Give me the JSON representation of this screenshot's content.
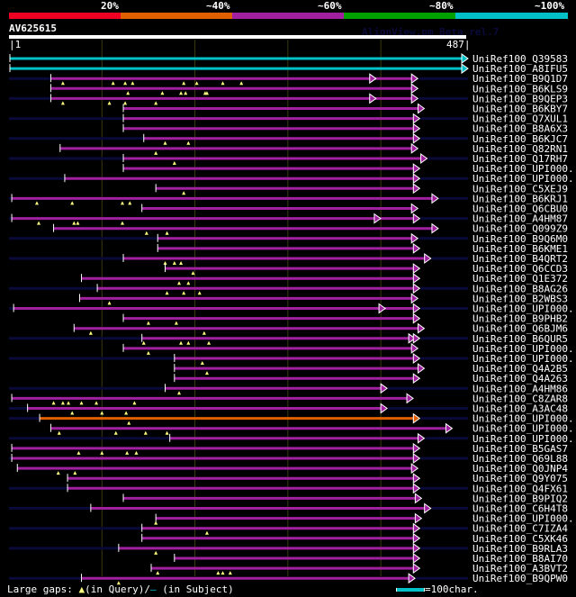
{
  "header": {
    "percent_labels": [
      "20%",
      "~40%",
      "~60%",
      "~80%",
      "~100%"
    ],
    "identity_bands": [
      {
        "label": "20%",
        "color": "#ee0022"
      },
      {
        "label": "~40%",
        "color": "#e06000"
      },
      {
        "label": "~60%",
        "color": "#a020a0"
      },
      {
        "label": "~80%",
        "color": "#00a000"
      },
      {
        "label": "~100%",
        "color": "#00c0c8"
      }
    ],
    "query_name": "AV625615",
    "credit": "AlignView.pm Beta rel.7",
    "query_start": "1",
    "query_end": "487"
  },
  "axis": {
    "min": 1,
    "max": 487,
    "gridlines": [
      100,
      200,
      300,
      400
    ]
  },
  "colors": {
    "magenta": "#a020a0",
    "cyan": "#00c0c8",
    "orange": "#e06000",
    "dark": "#0a0a3a",
    "gap": "#ffff80"
  },
  "hits": [
    {
      "name": "UniRef100_Q39583",
      "color": "cyan",
      "start": 1,
      "end": 487,
      "tail": 0
    },
    {
      "name": "UniRef100_A8IFU5",
      "color": "cyan",
      "start": 1,
      "end": 487,
      "tail": 0
    },
    {
      "name": "UniRef100_B9Q1D7",
      "color": "magenta",
      "start": 45,
      "end": 433,
      "mid": [
        388
      ],
      "tail": 1,
      "gaps": [
        58,
        112,
        125,
        133,
        188,
        202,
        230,
        250
      ]
    },
    {
      "name": "UniRef100_B6KLS9",
      "color": "magenta",
      "start": 45,
      "end": 433,
      "tail": 0,
      "gaps": [
        128,
        165,
        185,
        190,
        211,
        213
      ]
    },
    {
      "name": "UniRef100_B9QEP3",
      "color": "magenta",
      "start": 45,
      "end": 433,
      "mid": [
        388
      ],
      "tail": 1,
      "gaps": [
        58,
        108,
        125,
        158
      ]
    },
    {
      "name": "UniRef100_B6KBY7",
      "color": "magenta",
      "start": 123,
      "end": 440,
      "tail": 0
    },
    {
      "name": "UniRef100_Q7XUL1",
      "color": "magenta",
      "start": 123,
      "end": 435,
      "tail": 1
    },
    {
      "name": "UniRef100_B8A6X3",
      "color": "magenta",
      "start": 123,
      "end": 435,
      "tail": 0
    },
    {
      "name": "UniRef100_B6KJC7",
      "color": "magenta",
      "start": 145,
      "end": 435,
      "tail": 1,
      "gaps": [
        168,
        193
      ]
    },
    {
      "name": "UniRef100_Q82RN1",
      "color": "magenta",
      "start": 55,
      "end": 433,
      "tail": 0,
      "gaps": [
        158
      ]
    },
    {
      "name": "UniRef100_Q17RH7",
      "color": "magenta",
      "start": 123,
      "end": 443,
      "tail": 1,
      "gaps": [
        178
      ]
    },
    {
      "name": "UniRef100_UPI000..",
      "color": "magenta",
      "start": 123,
      "end": 435,
      "tail": 0
    },
    {
      "name": "UniRef100_UPI000..",
      "color": "magenta",
      "start": 60,
      "end": 435,
      "tail": 1
    },
    {
      "name": "UniRef100_C5XEJ9",
      "color": "magenta",
      "start": 158,
      "end": 435,
      "tail": 0,
      "gaps": [
        188
      ]
    },
    {
      "name": "UniRef100_B6KRJ1",
      "color": "magenta",
      "start": 3,
      "end": 455,
      "tail": 1,
      "gaps": [
        30,
        68,
        122,
        130
      ]
    },
    {
      "name": "UniRef100_Q6CBU0",
      "color": "magenta",
      "start": 143,
      "end": 433,
      "tail": 0
    },
    {
      "name": "UniRef100_A4HM87",
      "color": "magenta",
      "start": 3,
      "end": 435,
      "mid": [
        393
      ],
      "tail": 1,
      "gaps": [
        32,
        70,
        74,
        122
      ]
    },
    {
      "name": "UniRef100_Q099Z9",
      "color": "magenta",
      "start": 48,
      "end": 455,
      "tail": 0,
      "gaps": [
        148,
        170
      ]
    },
    {
      "name": "UniRef100_B9Q6M0",
      "color": "magenta",
      "start": 160,
      "end": 433,
      "tail": 1
    },
    {
      "name": "UniRef100_B6KME1",
      "color": "magenta",
      "start": 160,
      "end": 435,
      "tail": 0
    },
    {
      "name": "UniRef100_B4QRT2",
      "color": "magenta",
      "start": 123,
      "end": 447,
      "tail": 1,
      "gaps": [
        168,
        178,
        185
      ]
    },
    {
      "name": "UniRef100_Q6CCD3",
      "color": "magenta",
      "start": 168,
      "end": 435,
      "tail": 0,
      "gaps": [
        198
      ]
    },
    {
      "name": "UniRef100_Q1E372",
      "color": "magenta",
      "start": 78,
      "end": 435,
      "tail": 0,
      "gaps": [
        183,
        193
      ]
    },
    {
      "name": "UniRef100_B8AG26",
      "color": "magenta",
      "start": 95,
      "end": 435,
      "tail": 1,
      "gaps": [
        170,
        188,
        205
      ]
    },
    {
      "name": "UniRef100_B2WBS3",
      "color": "magenta",
      "start": 76,
      "end": 433,
      "tail": 0,
      "gaps": [
        108
      ]
    },
    {
      "name": "UniRef100_UPI000..",
      "color": "magenta",
      "start": 5,
      "end": 435,
      "mid": [
        398
      ],
      "tail": 1
    },
    {
      "name": "UniRef100_B9PHB2",
      "color": "magenta",
      "start": 123,
      "end": 435,
      "tail": 0,
      "gaps": [
        150,
        180
      ]
    },
    {
      "name": "UniRef100_Q6BJM6",
      "color": "magenta",
      "start": 70,
      "end": 440,
      "tail": 0,
      "gaps": [
        88,
        210
      ]
    },
    {
      "name": "UniRef100_B6QUR5",
      "color": "magenta",
      "start": 143,
      "end": 435,
      "mid": [
        430
      ],
      "tail": 1,
      "gaps": [
        145,
        185,
        193,
        215
      ]
    },
    {
      "name": "UniRef100_UPI000..",
      "color": "magenta",
      "start": 123,
      "end": 433,
      "tail": 0,
      "gaps": [
        150
      ]
    },
    {
      "name": "UniRef100_UPI000..",
      "color": "magenta",
      "start": 178,
      "end": 435,
      "tail": 1,
      "gaps": [
        208
      ]
    },
    {
      "name": "UniRef100_Q4A2B5",
      "color": "magenta",
      "start": 178,
      "end": 440,
      "tail": 0,
      "gaps": [
        213
      ]
    },
    {
      "name": "UniRef100_Q4A263",
      "color": "magenta",
      "start": 178,
      "end": 435,
      "tail": 0
    },
    {
      "name": "UniRef100_A4HM86",
      "color": "magenta",
      "start": 168,
      "end": 400,
      "tail": 1,
      "gaps": [
        183
      ]
    },
    {
      "name": "UniRef100_C8ZAR8",
      "color": "magenta",
      "start": 3,
      "end": 428,
      "tail": 0,
      "gaps": [
        48,
        58,
        64,
        78,
        94,
        135
      ]
    },
    {
      "name": "UniRef100_A3AC48",
      "color": "magenta",
      "start": 20,
      "end": 400,
      "tail": 1,
      "gaps": [
        68,
        100,
        126
      ]
    },
    {
      "name": "UniRef100_UPI000..",
      "color": "orange",
      "start": 33,
      "end": 435,
      "tail": 1,
      "gaps": [
        129
      ]
    },
    {
      "name": "UniRef100_UPI000..",
      "color": "magenta",
      "start": 45,
      "end": 470,
      "tail": 0,
      "gaps": [
        54,
        115,
        147,
        170
      ]
    },
    {
      "name": "UniRef100_UPI000..",
      "color": "magenta",
      "start": 173,
      "end": 440,
      "tail": 1
    },
    {
      "name": "UniRef100_B5GAS7",
      "color": "magenta",
      "start": 3,
      "end": 435,
      "tail": 0,
      "gaps": [
        75,
        100,
        127,
        137
      ]
    },
    {
      "name": "UniRef100_Q69L88",
      "color": "magenta",
      "start": 3,
      "end": 435,
      "tail": 1
    },
    {
      "name": "UniRef100_Q0JNP4",
      "color": "magenta",
      "start": 9,
      "end": 433,
      "tail": 0,
      "gaps": [
        53,
        71
      ]
    },
    {
      "name": "UniRef100_Q9Y075",
      "color": "magenta",
      "start": 63,
      "end": 435,
      "tail": 0
    },
    {
      "name": "UniRef100_Q4FX61",
      "color": "magenta",
      "start": 63,
      "end": 435,
      "tail": 1
    },
    {
      "name": "UniRef100_B9PIQ2",
      "color": "magenta",
      "start": 123,
      "end": 437,
      "tail": 0
    },
    {
      "name": "UniRef100_C6H4T8",
      "color": "magenta",
      "start": 88,
      "end": 447,
      "tail": 1
    },
    {
      "name": "UniRef100_UPI000..",
      "color": "magenta",
      "start": 158,
      "end": 437,
      "tail": 0,
      "gaps": [
        158
      ]
    },
    {
      "name": "UniRef100_C7IZA4",
      "color": "magenta",
      "start": 143,
      "end": 435,
      "tail": 1,
      "gaps": [
        213
      ]
    },
    {
      "name": "UniRef100_C5XK46",
      "color": "magenta",
      "start": 143,
      "end": 435,
      "tail": 0
    },
    {
      "name": "UniRef100_B9RLA3",
      "color": "magenta",
      "start": 118,
      "end": 435,
      "tail": 1,
      "gaps": [
        158
      ]
    },
    {
      "name": "UniRef100_B8AI70",
      "color": "magenta",
      "start": 178,
      "end": 435,
      "tail": 0
    },
    {
      "name": "UniRef100_A3BVT2",
      "color": "magenta",
      "start": 153,
      "end": 435,
      "tail": 0,
      "gaps": [
        160,
        225,
        230,
        238
      ]
    },
    {
      "name": "UniRef100_B9QPW0",
      "color": "magenta",
      "start": 78,
      "end": 430,
      "tail": 1,
      "gaps": [
        118
      ]
    }
  ],
  "footer": {
    "legend_prefix": "Large gaps:",
    "query_gap_glyph": "▲",
    "query_gap_text": "(in Query)/",
    "subject_gap_glyph": "–",
    "subject_gap_text": " (in Subject)",
    "scale_text": "=100char."
  }
}
